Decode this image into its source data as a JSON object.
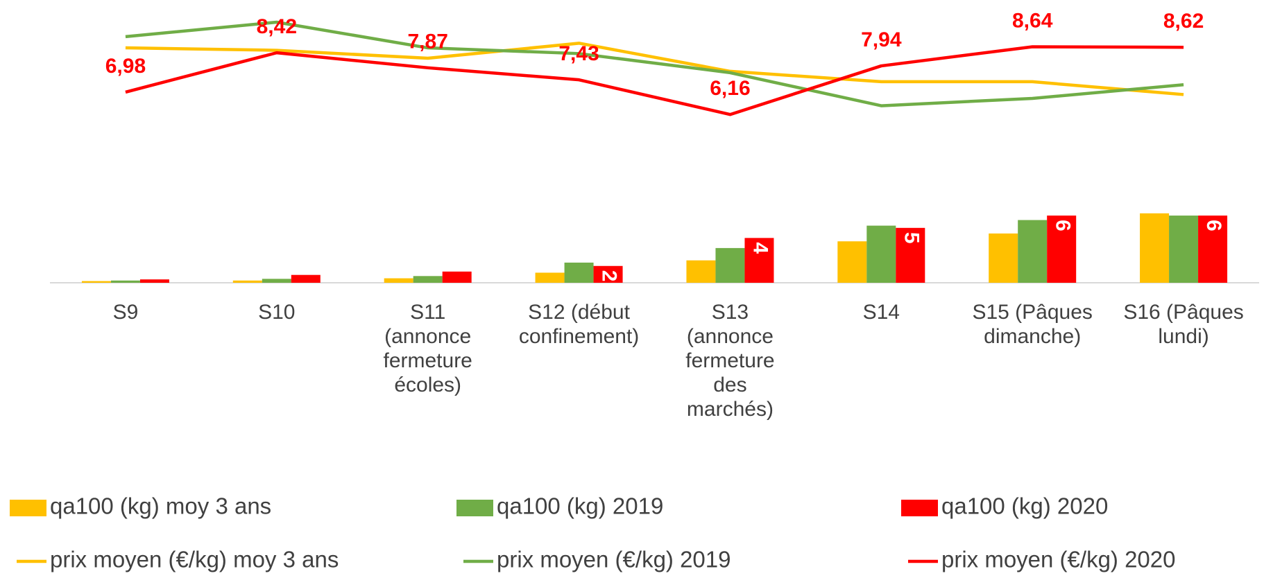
{
  "chart_data": {
    "type": "combo",
    "categories": [
      "S9",
      "S10",
      "S11\n(annonce\nfermeture\nécoles)",
      "S12 (début\nconfinement)",
      "S13\n(annonce\nfermeture\ndes\nmarchés)",
      "S14",
      "S15 (Pâques\ndimanche)",
      "S16 (Pâques\nlundi)"
    ],
    "ylim": [
      0,
      25
    ],
    "y2lim": [
      0,
      10.25
    ],
    "series": [
      {
        "name": "qa100 (kg) moy 3 ans",
        "type": "bar",
        "color": "#FFC000",
        "values": [
          0.15,
          0.2,
          0.4,
          0.9,
          2.0,
          3.7,
          4.4,
          6.2
        ]
      },
      {
        "name": "qa100 (kg) 2019",
        "type": "bar",
        "color": "#70AD47",
        "values": [
          0.2,
          0.35,
          0.6,
          1.8,
          3.1,
          5.1,
          5.6,
          6.0
        ]
      },
      {
        "name": "qa100 (kg) 2020",
        "type": "bar",
        "color": "#FF0000",
        "values": [
          0.3,
          0.7,
          1.0,
          1.5,
          4.0,
          4.9,
          6.0,
          6.0
        ],
        "value_labels": [
          null,
          null,
          null,
          "2",
          "4",
          "5",
          "6",
          "6"
        ]
      },
      {
        "name": "prix moyen (€/kg) moy 3 ans",
        "type": "line",
        "axis": "y2",
        "color": "#FFC000",
        "values": [
          8.6,
          8.51,
          8.22,
          8.77,
          7.74,
          7.36,
          7.36,
          6.89
        ]
      },
      {
        "name": "prix moyen (€/kg) 2019",
        "type": "line",
        "axis": "y2",
        "color": "#70AD47",
        "values": [
          9.01,
          9.54,
          8.6,
          8.39,
          7.69,
          6.48,
          6.75,
          7.25
        ]
      },
      {
        "name": "prix moyen (€/kg) 2020",
        "type": "line",
        "axis": "y2",
        "color": "#FF0000",
        "values": [
          6.98,
          8.42,
          7.87,
          7.43,
          6.16,
          7.94,
          8.64,
          8.62
        ],
        "value_labels": [
          "6,98",
          "8,42",
          "7,87",
          "7,43",
          "6,16",
          "7,94",
          "8,64",
          "8,62"
        ]
      }
    ]
  }
}
